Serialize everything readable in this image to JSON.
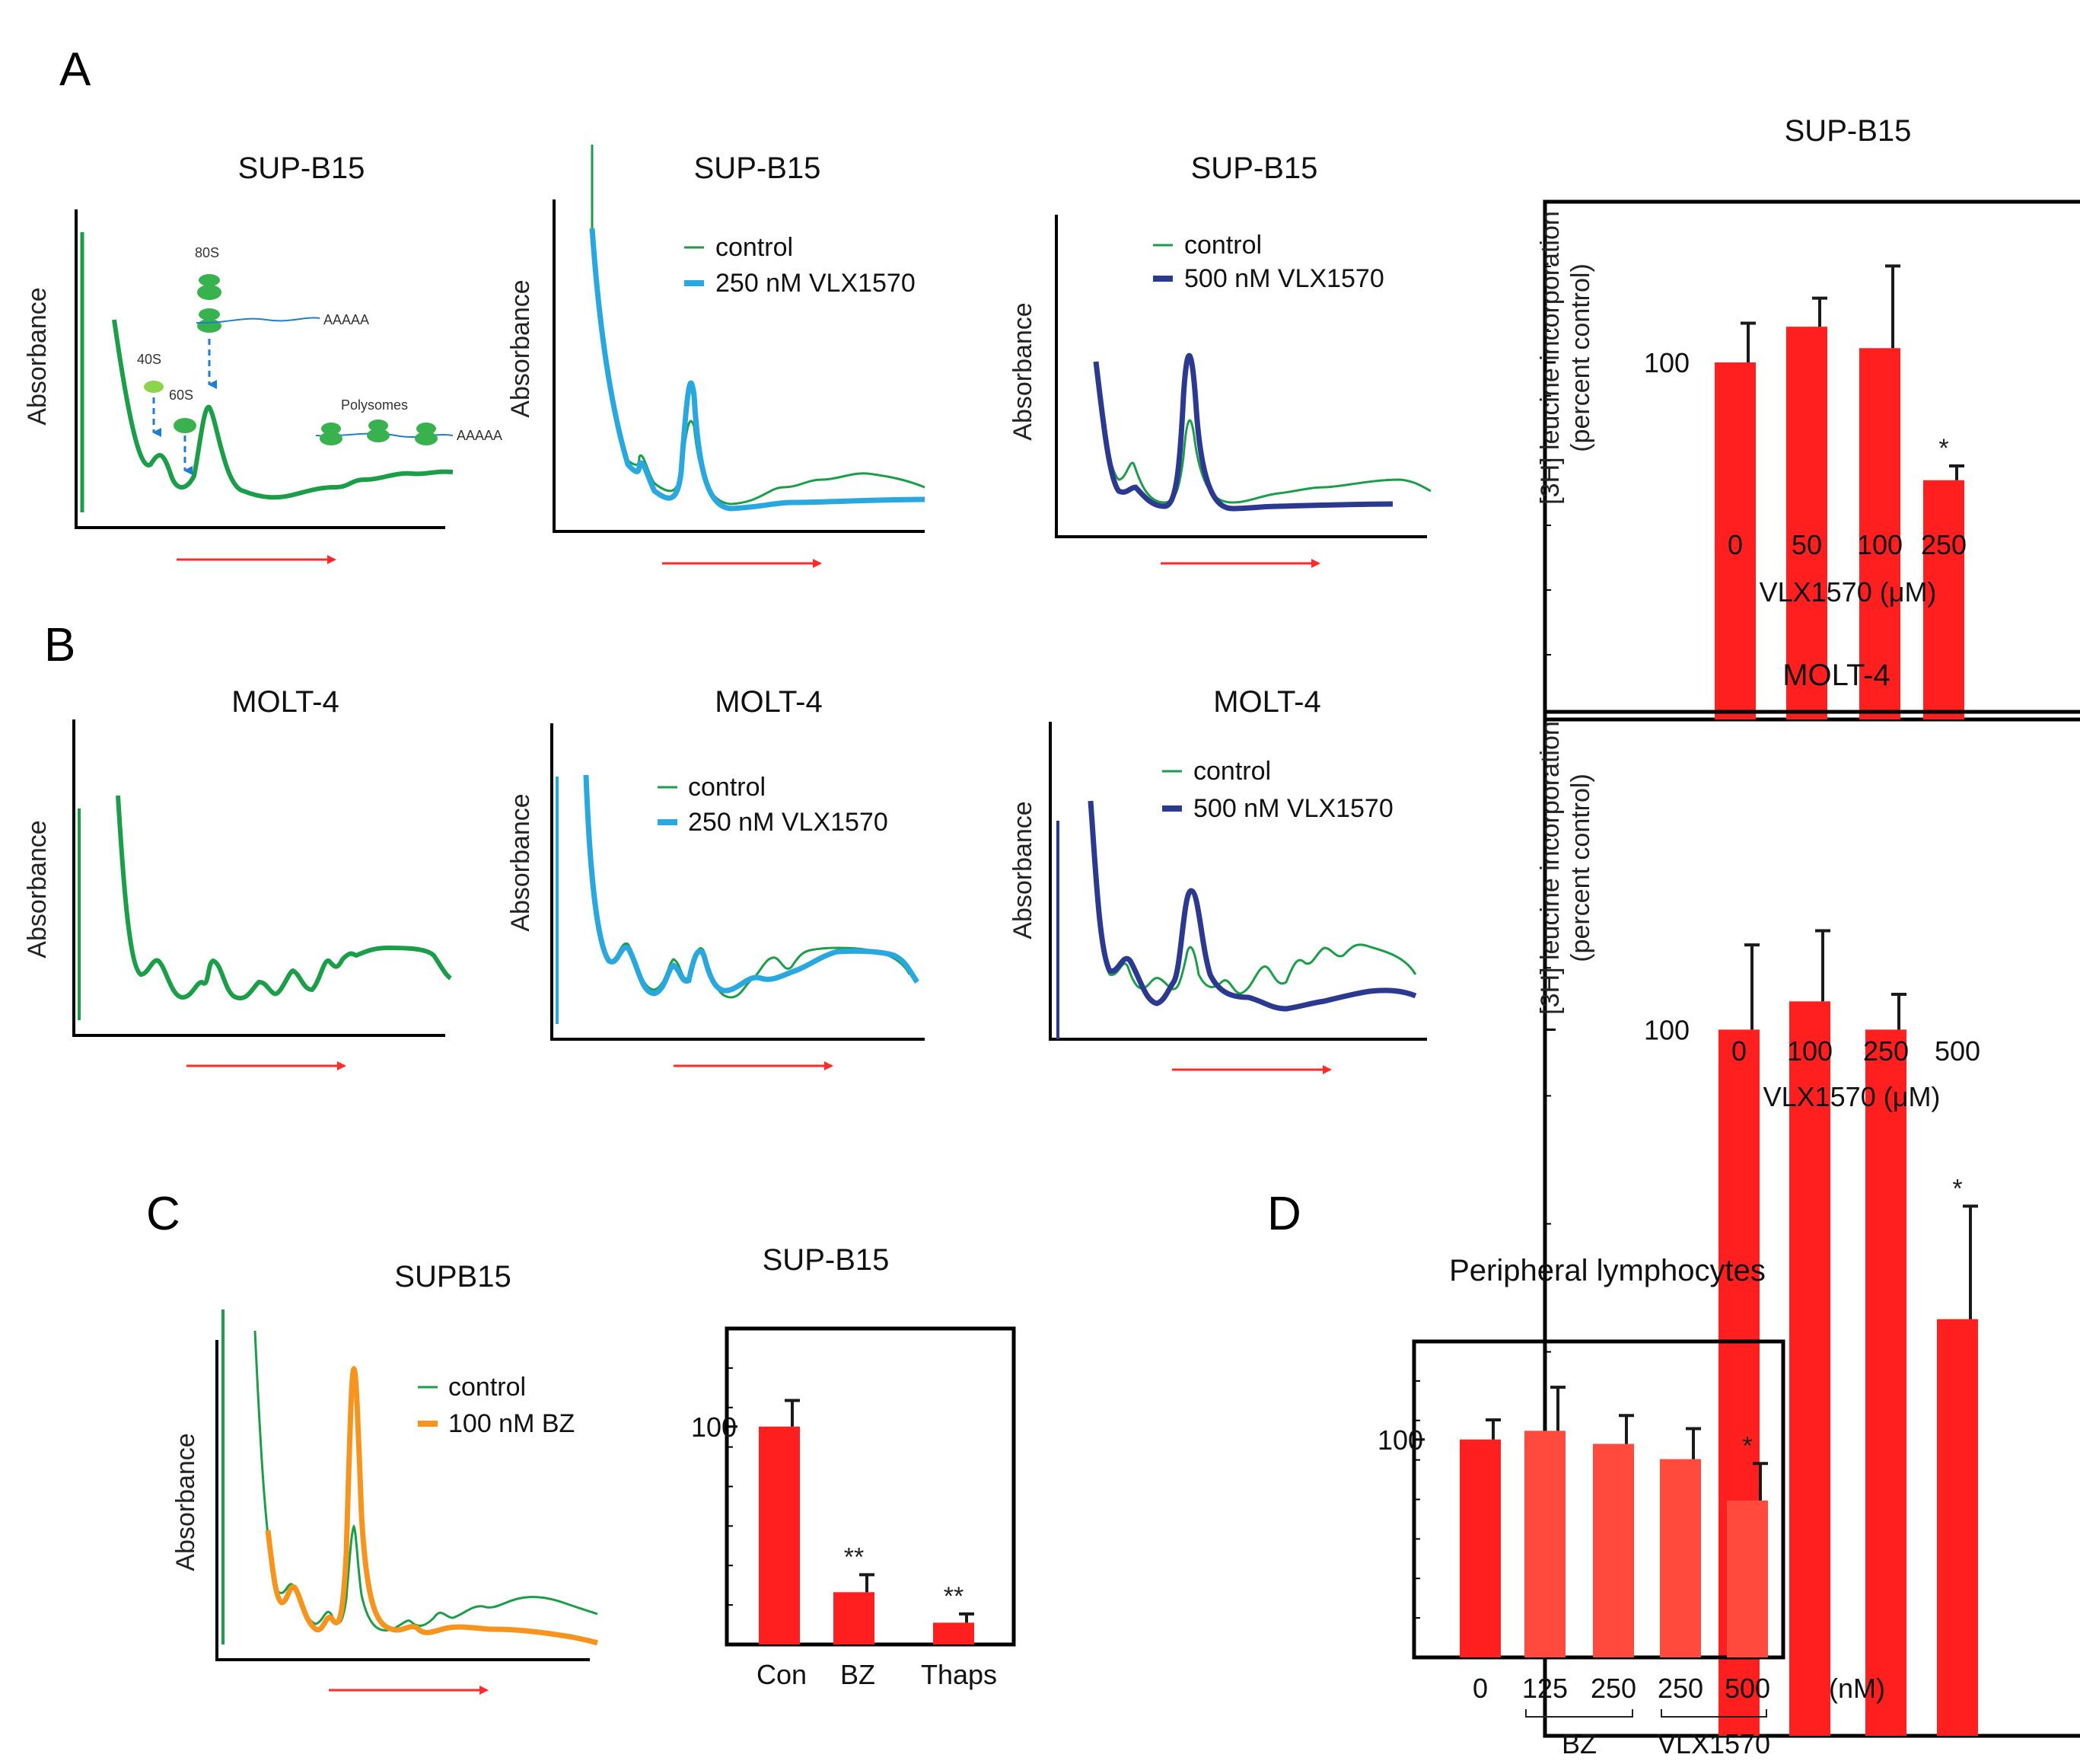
{
  "panel_labels": [
    "A",
    "B",
    "C",
    "D"
  ],
  "colors": {
    "control": "#1a9e48",
    "vlx250": "#29a8e0",
    "vlx500": "#2b3990",
    "bz": "#f7941d",
    "bar": "#ff1f1f",
    "bar_light": "#ff4a3d",
    "arrow": "#ff2a2a",
    "diagram_green": "#37b24d",
    "diagram_light": "#8cd44a",
    "diagram_blue": "#1e7fd0"
  },
  "profiles": {
    "y_label": "Absorbance",
    "A1": {
      "title": "SUP-B15",
      "legend": [],
      "diagram": {
        "s80": "80S",
        "s40": "40S",
        "s60": "60S",
        "poly": "Polysomes",
        "polyA": "AAAAA"
      }
    },
    "A2": {
      "title": "SUP-B15",
      "legend": [
        "control",
        "250 nM VLX1570"
      ]
    },
    "A3": {
      "title": "SUP-B15",
      "legend": [
        "control",
        "500 nM VLX1570"
      ]
    },
    "B1": {
      "title": "MOLT-4",
      "legend": []
    },
    "B2": {
      "title": "MOLT-4",
      "legend": [
        "control",
        "250 nM VLX1570"
      ]
    },
    "B3": {
      "title": "MOLT-4",
      "legend": [
        "control",
        "500 nM VLX1570"
      ]
    },
    "C1": {
      "title": "SUPB15",
      "legend": [
        "control",
        "100 nM BZ"
      ]
    }
  },
  "chart_data": [
    {
      "id": "A4",
      "type": "bar",
      "title": "SUP-B15",
      "xlabel": "VLX1570 (μM)",
      "ylabel_1": "[3H] leucine incorporation",
      "ylabel_2": "(percent control)",
      "categories": [
        "0",
        "50",
        "100",
        "250"
      ],
      "values": [
        100,
        110,
        104,
        67
      ],
      "errors": [
        11,
        8,
        23,
        4
      ],
      "annotations": [
        "",
        "",
        "",
        "*"
      ],
      "ylim": [
        0,
        145
      ],
      "ytick_label": "100",
      "ytick_value": 100
    },
    {
      "id": "B4",
      "type": "bar",
      "title": "MOLT-4",
      "xlabel": "VLX1570 (μM)",
      "ylabel_1": "[3H] leucine incorporation",
      "ylabel_2": "(percent control)",
      "categories": [
        "0",
        "100",
        "250",
        "500"
      ],
      "values": [
        100,
        104,
        100,
        59
      ],
      "errors": [
        12,
        10,
        5,
        16
      ],
      "annotations": [
        "",
        "",
        "",
        "*"
      ],
      "ylim": [
        0,
        145
      ],
      "ytick_label": "100",
      "ytick_value": 100
    },
    {
      "id": "C2",
      "type": "bar",
      "title": "SUP-B15",
      "xlabel": "",
      "ylabel_1": "",
      "ylabel_2": "",
      "categories": [
        "Con",
        "BZ",
        "Thaps"
      ],
      "values": [
        100,
        24,
        10
      ],
      "errors": [
        12,
        8,
        4
      ],
      "annotations": [
        "",
        "**",
        "**"
      ],
      "ylim": [
        0,
        145
      ],
      "ytick_label": "100",
      "ytick_value": 100
    },
    {
      "id": "D",
      "type": "bar",
      "title": "Peripheral lymphocytes",
      "xlabel": "",
      "unit_label": "(nM)",
      "categories": [
        "0",
        "125",
        "250",
        "250",
        "500"
      ],
      "groups": [
        {
          "label": "BZ",
          "members": [
            1,
            2
          ]
        },
        {
          "label": "VLX1570",
          "members": [
            3,
            4
          ]
        }
      ],
      "values": [
        100,
        104,
        98,
        91,
        72
      ],
      "errors": [
        9,
        20,
        13,
        14,
        17
      ],
      "annotations": [
        "",
        "",
        "",
        "",
        "*"
      ],
      "ylim": [
        0,
        145
      ],
      "ytick_label": "100",
      "ytick_value": 100
    }
  ]
}
